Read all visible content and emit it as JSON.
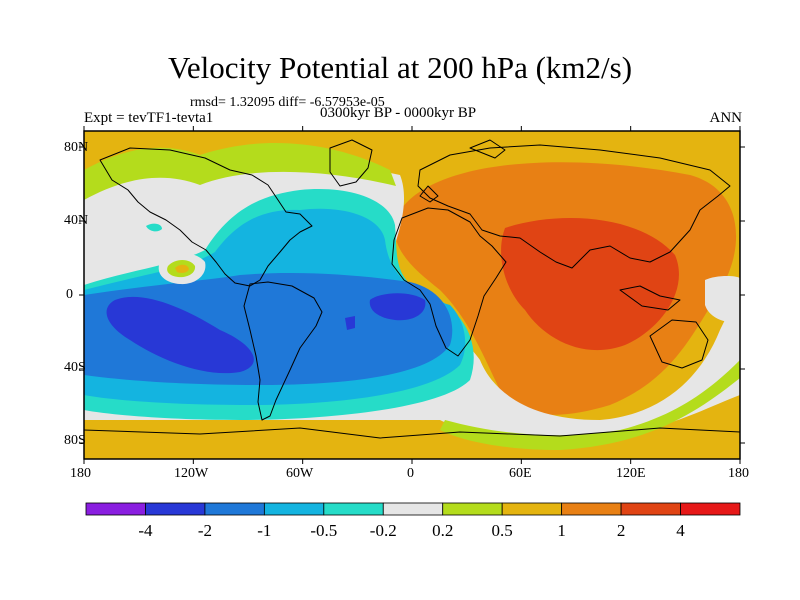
{
  "title": "Velocity Potential at 200 hPa (km2/s)",
  "stats": "rmsd= 1.32095 diff= -6.57953e-05",
  "experiment": "Expt = tevTF1-tevta1",
  "period": "0300kyr BP - 0000kyr BP",
  "season": "ANN",
  "lat_labels": [
    "80N",
    "40N",
    "0",
    "40S",
    "80S"
  ],
  "lon_labels": [
    "180",
    "120W",
    "60W",
    "0",
    "60E",
    "120E",
    "180"
  ],
  "colorbar": {
    "labels": [
      "-4",
      "-2",
      "-1",
      "-0.5",
      "-0.2",
      "0.2",
      "0.5",
      "1",
      "2",
      "4"
    ],
    "colors": [
      "#8a1ee0",
      "#2838d6",
      "#1f78d8",
      "#14b4e0",
      "#26dcc8",
      "#e6e6e6",
      "#b4dc1c",
      "#e4b410",
      "#e88014",
      "#e04414",
      "#e61818"
    ]
  },
  "palette": {
    "fill_bg": "#e4b410",
    "positive_mid": "#e88014",
    "positive_high": "#e04414",
    "near_zero": "#e6e6e6",
    "weak_pos": "#b4dc1c",
    "weak_neg": "#26dcc8",
    "mid_neg": "#14b4e0",
    "neg": "#1f78d8",
    "strong_neg": "#2838d6"
  }
}
